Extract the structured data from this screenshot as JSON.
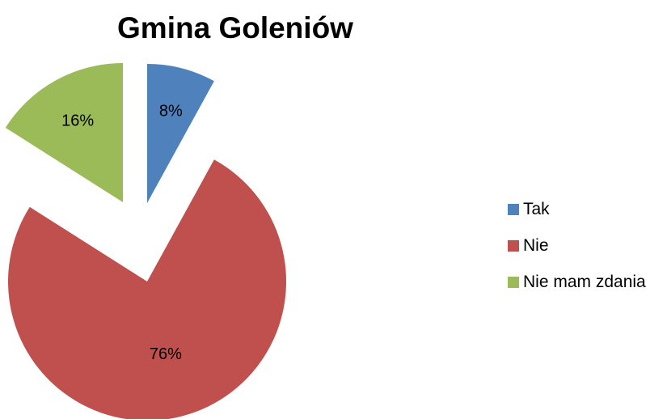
{
  "chart_data": {
    "type": "pie",
    "title": "Gmina Goleniów",
    "categories": [
      "Tak",
      "Nie",
      "Nie mam zdania"
    ],
    "values": [
      8,
      76,
      16
    ],
    "value_labels": [
      "8%",
      "76%",
      "16%"
    ],
    "colors": [
      "#4f81bd",
      "#c0504d",
      "#9bbb59"
    ],
    "exploded": true,
    "legend_position": "right"
  }
}
